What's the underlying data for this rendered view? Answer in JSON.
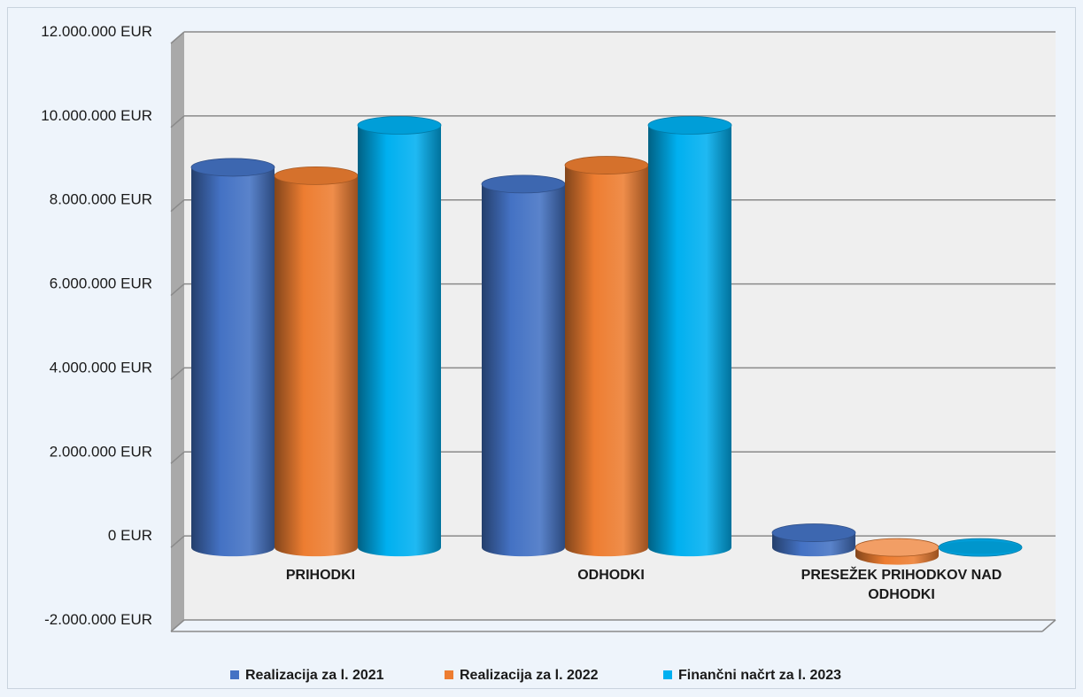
{
  "chart_data": {
    "type": "bar",
    "style": "3d-cylinder",
    "categories": [
      "PRIHODKI",
      "ODHODKI",
      "PRESEŽEK PRIHODKOV NAD ODHODKI"
    ],
    "series": [
      {
        "name": "Realizacija za l. 2021",
        "color": "#4472c4",
        "values": [
          9050000,
          8650000,
          350000
        ]
      },
      {
        "name": "Realizacija za l. 2022",
        "color": "#ed7d31",
        "values": [
          8850000,
          9100000,
          -200000
        ]
      },
      {
        "name": "Finančni načrt za l. 2023",
        "color": "#00b0f0",
        "values": [
          10050000,
          10050000,
          0
        ]
      }
    ],
    "y_ticks": [
      -2000000,
      0,
      2000000,
      4000000,
      6000000,
      8000000,
      10000000,
      12000000
    ],
    "y_tick_labels": [
      "-2.000.000 EUR",
      "0 EUR",
      "2.000.000 EUR",
      "4.000.000 EUR",
      "6.000.000 EUR",
      "8.000.000 EUR",
      "10.000.000 EUR",
      "12.000.000 EUR"
    ],
    "ylim": [
      -2000000,
      12000000
    ],
    "grid": true,
    "legend_position": "bottom"
  }
}
